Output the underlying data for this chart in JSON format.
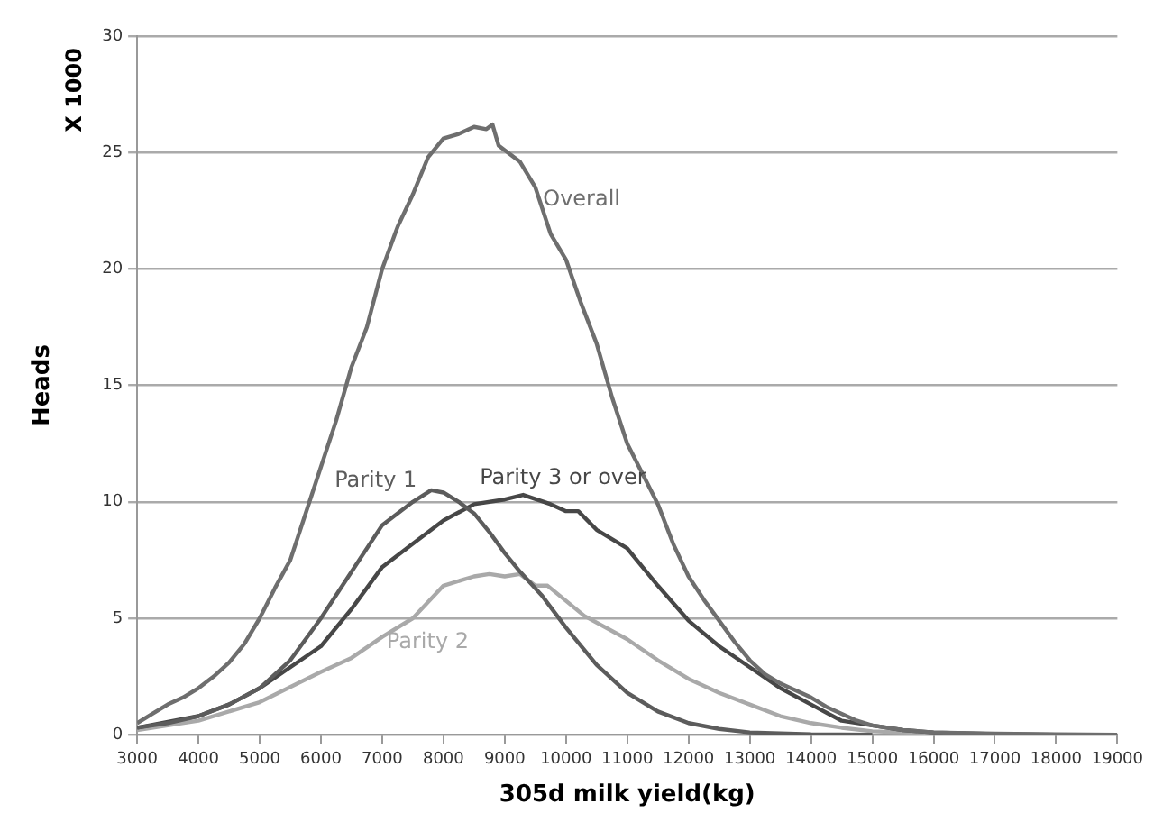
{
  "chart_data": {
    "type": "line",
    "xlabel": "305d milk yield(kg)",
    "ylabel": "Heads",
    "annotations": [
      "X 1000"
    ],
    "xlim": [
      3000,
      19000
    ],
    "xticks": [
      3000,
      4000,
      5000,
      6000,
      7000,
      8000,
      9000,
      10000,
      11000,
      12000,
      13000,
      14000,
      15000,
      16000,
      17000,
      18000,
      19000
    ],
    "ylim": [
      0,
      30
    ],
    "yticks": [
      0,
      5,
      10,
      15,
      20,
      25,
      30
    ],
    "grid": "y",
    "legend": false,
    "marker": "none",
    "line_style": "solid",
    "series": [
      {
        "name": "Overall",
        "color": "#6e6e6e",
        "x": [
          3000,
          3250,
          3500,
          3750,
          4000,
          4250,
          4500,
          4750,
          5000,
          5250,
          5500,
          5750,
          6000,
          6250,
          6500,
          6750,
          7000,
          7250,
          7500,
          7750,
          8000,
          8250,
          8500,
          8700,
          8800,
          8900,
          9250,
          9500,
          9750,
          10000,
          10250,
          10500,
          10750,
          11000,
          11250,
          11500,
          11750,
          12000,
          12250,
          12500,
          12750,
          13000,
          13250,
          13500,
          13750,
          14000,
          14250,
          14500,
          14750,
          15000,
          15500,
          16000,
          17000,
          18000,
          19000
        ],
        "values": [
          0.5,
          0.9,
          1.3,
          1.6,
          2.0,
          2.5,
          3.1,
          3.9,
          5.0,
          6.3,
          7.5,
          9.5,
          11.5,
          13.5,
          15.8,
          17.5,
          20.0,
          21.8,
          23.2,
          24.8,
          25.6,
          25.8,
          26.1,
          26.0,
          26.2,
          25.3,
          24.6,
          23.5,
          21.5,
          20.4,
          18.5,
          16.8,
          14.5,
          12.5,
          11.2,
          9.9,
          8.2,
          6.8,
          5.8,
          4.9,
          4.0,
          3.2,
          2.6,
          2.2,
          1.9,
          1.6,
          1.2,
          0.9,
          0.6,
          0.4,
          0.2,
          0.1,
          0.05,
          0.02,
          0
        ]
      },
      {
        "name": "Parity 1",
        "color": "#5c5c5c",
        "x": [
          3000,
          3500,
          4000,
          4500,
          5000,
          5500,
          6000,
          6500,
          7000,
          7500,
          7800,
          8000,
          8250,
          8500,
          8750,
          9000,
          9250,
          9600,
          10000,
          10500,
          11000,
          11500,
          12000,
          12500,
          13000,
          14000,
          15000
        ],
        "values": [
          0.3,
          0.5,
          0.8,
          1.3,
          2.0,
          3.2,
          5.0,
          7.0,
          9.0,
          10.0,
          10.5,
          10.4,
          10.0,
          9.5,
          8.7,
          7.8,
          7.0,
          6.0,
          4.6,
          3.0,
          1.8,
          1.0,
          0.5,
          0.25,
          0.1,
          0.02,
          0
        ]
      },
      {
        "name": "Parity 3 or over",
        "color": "#474747",
        "x": [
          3000,
          4000,
          4500,
          5000,
          6000,
          6500,
          7000,
          7500,
          8000,
          8500,
          9000,
          9300,
          9750,
          10000,
          10200,
          10500,
          11000,
          11500,
          12000,
          12500,
          13000,
          13500,
          14000,
          14500,
          15000,
          15500,
          16000,
          17000,
          18000
        ],
        "values": [
          0.3,
          0.8,
          1.3,
          2.0,
          3.8,
          5.4,
          7.2,
          8.2,
          9.2,
          9.9,
          10.1,
          10.3,
          9.9,
          9.6,
          9.6,
          8.8,
          8.0,
          6.4,
          4.9,
          3.8,
          2.9,
          2.0,
          1.3,
          0.6,
          0.4,
          0.2,
          0.1,
          0.03,
          0
        ]
      },
      {
        "name": "Parity 2",
        "color": "#a9a9a9",
        "x": [
          3000,
          4000,
          5000,
          6000,
          6500,
          7000,
          7500,
          8000,
          8500,
          8750,
          9000,
          9250,
          9500,
          9700,
          10300,
          11000,
          11500,
          12000,
          12500,
          13000,
          13500,
          14000,
          14500,
          15000,
          16000,
          17000
        ],
        "values": [
          0.2,
          0.6,
          1.4,
          2.7,
          3.3,
          4.2,
          5.0,
          6.4,
          6.8,
          6.9,
          6.8,
          6.9,
          6.4,
          6.4,
          5.1,
          4.1,
          3.2,
          2.4,
          1.8,
          1.3,
          0.8,
          0.5,
          0.3,
          0.15,
          0.05,
          0
        ]
      }
    ]
  }
}
